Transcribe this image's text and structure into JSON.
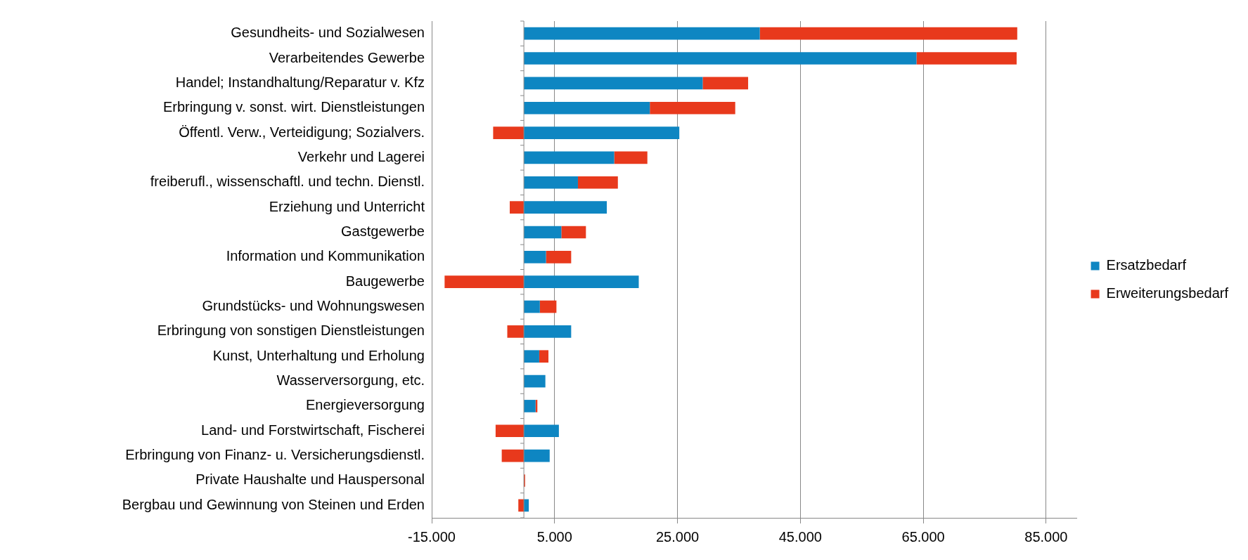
{
  "chart_data": {
    "type": "bar",
    "orientation": "horizontal",
    "stacked": true,
    "legend": "right",
    "grid": "x",
    "categories": [
      "Gesundheits- und Sozialwesen",
      "Verarbeitendes Gewerbe",
      "Handel; Instandhaltung/Reparatur v. Kfz",
      "Erbringung v. sonst. wirt. Dienstleistungen",
      "Öffentl. Verw., Verteidigung; Sozialvers.",
      "Verkehr und Lagerei",
      "freiberufl., wissenschaftl. und techn. Dienstl.",
      "Erziehung und Unterricht",
      "Gastgewerbe",
      "Information und Kommunikation",
      "Baugewerbe",
      "Grundstücks- und Wohnungswesen",
      "Erbringung von sonstigen Dienstleistungen",
      "Kunst, Unterhaltung und Erholung",
      "Wasserversorgung, etc.",
      "Energieversorgung",
      "Land- und Forstwirtschaft, Fischerei",
      "Erbringung von Finanz- u. Versicherungsdienstl.",
      "Private Haushalte und Hauspersonal",
      "Bergbau und Gewinnung von Steinen und Erden"
    ],
    "series": [
      {
        "name": "Ersatzbedarf",
        "color": "#0e86c2",
        "values": [
          38400,
          63900,
          29100,
          20500,
          25300,
          14700,
          8800,
          13500,
          6100,
          3600,
          18700,
          2600,
          7700,
          2500,
          3500,
          1900,
          5700,
          4200,
          0,
          800
        ]
      },
      {
        "name": "Erweiterungsbedarf",
        "color": "#e8391c",
        "values": [
          41900,
          16300,
          7400,
          13900,
          -5000,
          5400,
          6500,
          -2300,
          4000,
          4100,
          -12900,
          2700,
          -2700,
          1500,
          0,
          300,
          -4600,
          -3600,
          200,
          -900
        ]
      }
    ],
    "xlim": [
      -15000,
      90000
    ],
    "xticks": [
      {
        "value": -15000,
        "label": "-15.000"
      },
      {
        "value": 5000,
        "label": "5.000"
      },
      {
        "value": 25000,
        "label": "25.000"
      },
      {
        "value": 45000,
        "label": "45.000"
      },
      {
        "value": 65000,
        "label": "65.000"
      },
      {
        "value": 85000,
        "label": "85.000"
      }
    ]
  }
}
